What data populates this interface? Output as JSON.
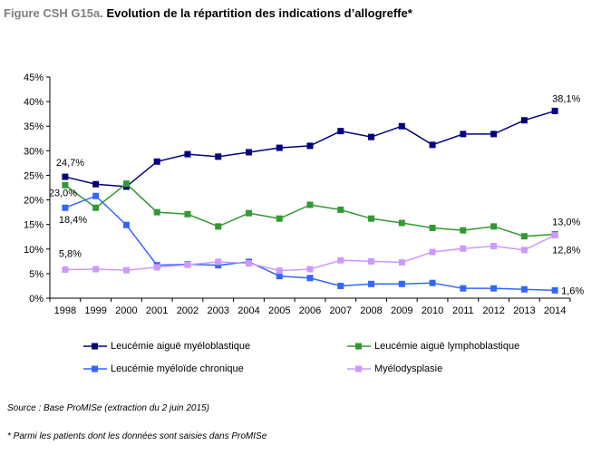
{
  "header": {
    "figure_label": "Figure CSH G15a.",
    "title": "Evolution de la répartition des indications d’allogreffe*"
  },
  "chart_data": {
    "type": "line",
    "title": "Evolution de la répartition des indications d’allogreffe*",
    "xlabel": "",
    "ylabel": "",
    "ylim": [
      0,
      45
    ],
    "y_ticks": [
      "0%",
      "5%",
      "10%",
      "15%",
      "20%",
      "25%",
      "30%",
      "35%",
      "40%",
      "45%"
    ],
    "grid": false,
    "legend_placement": "bottom",
    "categories": [
      "1998",
      "1999",
      "2000",
      "2001",
      "2002",
      "2003",
      "2004",
      "2005",
      "2006",
      "2007",
      "2008",
      "2009",
      "2010",
      "2011",
      "2012",
      "2013",
      "2014"
    ],
    "series": [
      {
        "name": "Leucémie aiguë myéloblastique",
        "color": "#000080",
        "marker": "square",
        "values": [
          24.7,
          23.2,
          22.7,
          27.8,
          29.3,
          28.8,
          29.7,
          30.6,
          31.0,
          34.0,
          32.8,
          35.0,
          31.2,
          33.4,
          33.4,
          36.2,
          38.1
        ]
      },
      {
        "name": "Leucémie aiguë lymphoblastique",
        "color": "#339933",
        "marker": "square",
        "values": [
          23.0,
          18.4,
          23.3,
          17.5,
          17.1,
          14.6,
          17.3,
          16.2,
          19.0,
          18.0,
          16.2,
          15.3,
          14.3,
          13.8,
          14.6,
          12.6,
          13.0
        ]
      },
      {
        "name": "Leucémie myéloïde chronique",
        "color": "#3366ff",
        "marker": "square",
        "values": [
          18.4,
          20.8,
          14.9,
          6.7,
          6.9,
          6.7,
          7.4,
          4.5,
          4.1,
          2.5,
          2.9,
          2.9,
          3.1,
          2.0,
          2.0,
          1.8,
          1.6
        ]
      },
      {
        "name": "Myélodysplasie",
        "color": "#cc99ff",
        "marker": "square",
        "values": [
          5.8,
          5.9,
          5.7,
          6.3,
          6.8,
          7.4,
          7.1,
          5.6,
          5.9,
          7.7,
          7.5,
          7.3,
          9.4,
          10.1,
          10.6,
          9.8,
          12.8
        ]
      }
    ],
    "annotations": [
      {
        "text": "24,7%",
        "series": 0,
        "index": 0
      },
      {
        "text": "23,0%",
        "series": 1,
        "index": 0
      },
      {
        "text": "18,4%",
        "series": 2,
        "index": 0
      },
      {
        "text": "5,8%",
        "series": 3,
        "index": 0
      },
      {
        "text": "38,1%",
        "series": 0,
        "index": 16
      },
      {
        "text": "13,0%",
        "series": 1,
        "index": 16
      },
      {
        "text": "12,8%",
        "series": 3,
        "index": 16
      },
      {
        "text": "1,6%",
        "series": 2,
        "index": 16
      }
    ]
  },
  "footnotes": {
    "source": "Source : Base ProMISe (extraction du 2 juin 2015)",
    "note": "* Parmi les patients dont les données sont saisies dans ProMISe"
  }
}
